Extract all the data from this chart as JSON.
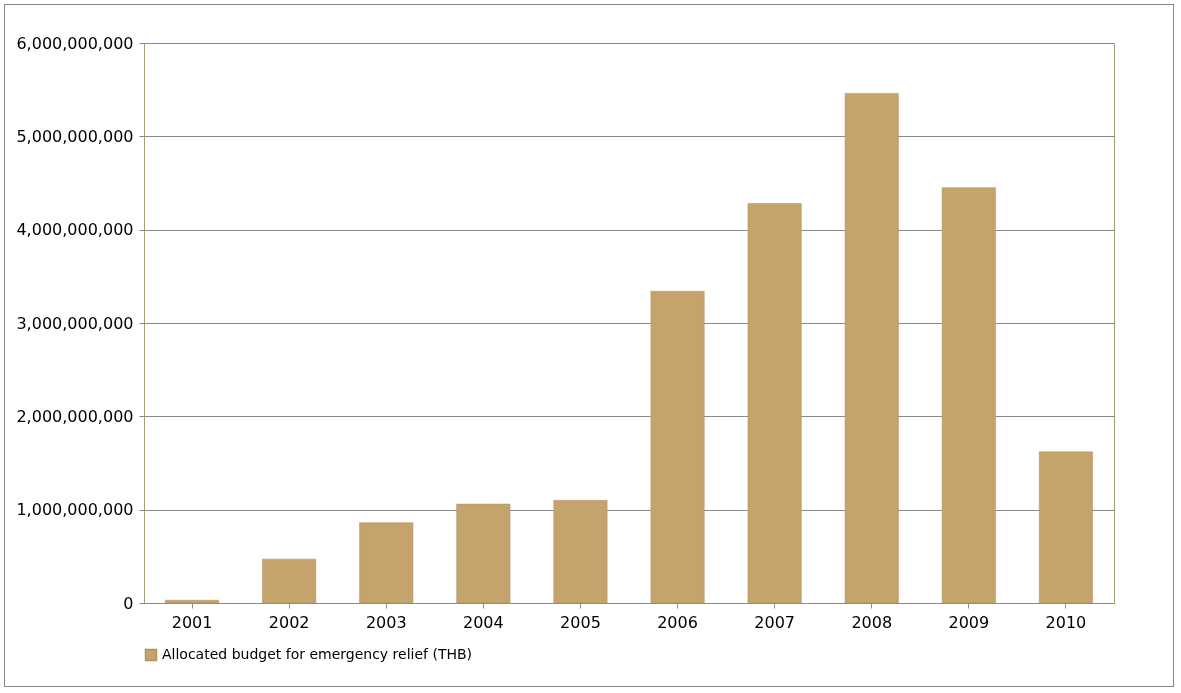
{
  "chart_data": {
    "type": "bar",
    "categories": [
      "2001",
      "2002",
      "2003",
      "2004",
      "2005",
      "2006",
      "2007",
      "2008",
      "2009",
      "2010"
    ],
    "series": [
      {
        "name": "Allocated budget for emergency relief (THB)",
        "color": "#c4a46c",
        "values": [
          30000000,
          470000000,
          860000000,
          1060000000,
          1100000000,
          3340000000,
          4280000000,
          5460000000,
          4450000000,
          1620000000
        ]
      }
    ],
    "ylim": [
      0,
      6000000000
    ],
    "yticks": [
      0,
      {
        "value": 1000000000,
        "label": "1,000,000,000"
      },
      {
        "value": 2000000000,
        "label": "2,000,000,000"
      },
      {
        "value": 3000000000,
        "label": "3,000,000,000"
      },
      {
        "value": 4000000000,
        "label": "4,000,000,000"
      },
      {
        "value": 5000000000,
        "label": "5,000,000,000"
      },
      {
        "value": 6000000000,
        "label": "6,000,000,000"
      }
    ],
    "grid": "y",
    "legend": "bottom"
  }
}
